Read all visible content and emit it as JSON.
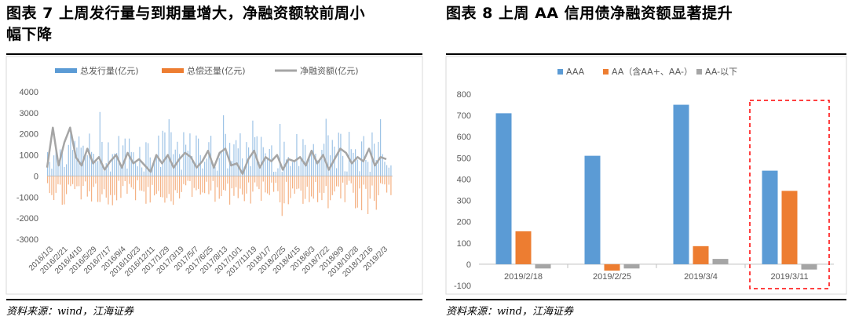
{
  "left": {
    "title": "图表 7   上周发行量与到期量增大，净融资额较前周小幅下降",
    "title_line1": "图表 7   上周发行量与到期量增大，净融资额较前周小",
    "title_line2": "幅下降",
    "source": "资料来源：wind，江海证券"
  },
  "right": {
    "title": "图表 8   上周 AA 信用债净融资额显著提升",
    "source": "资料来源：wind，江海证券"
  },
  "chart_data": [
    {
      "type": "bar",
      "title": "",
      "series": [
        {
          "name": "总发行量(亿元)",
          "type": "bar",
          "color": "#5B9BD5",
          "envelope": [
            300,
            1000,
            1500,
            2000,
            2500,
            2900,
            3000,
            3200,
            3300
          ]
        },
        {
          "name": "总偿还量(亿元)",
          "type": "bar",
          "color": "#ED7D31",
          "envelope": [
            -500,
            -1000,
            -1500,
            -1800,
            -1900
          ]
        },
        {
          "name": "净融资额(亿元)",
          "type": "line",
          "color": "#A5A5A5",
          "values": [
            400,
            2300,
            500,
            1600,
            2300,
            900,
            500,
            1300,
            600,
            900,
            300,
            700,
            1000,
            400,
            1100,
            600,
            800,
            500,
            200,
            1000,
            600,
            1000,
            400,
            800,
            1100,
            900,
            400,
            700,
            1200,
            400,
            1100,
            1300,
            500,
            600,
            100,
            800,
            1200,
            400,
            900,
            700,
            1000,
            300,
            800,
            700,
            900,
            500,
            1200,
            600,
            1000,
            300,
            800,
            1300,
            1100,
            600,
            900,
            700,
            1300,
            500,
            900,
            800
          ]
        }
      ],
      "ylim": [
        -3000,
        4000
      ],
      "yticks": [
        "4000",
        "3000",
        "2000",
        "1000",
        "0",
        "-1000",
        "-2000",
        "-3000"
      ],
      "xticks": [
        "2016/1/3",
        "2016/2/21",
        "2016/4/10",
        "2016/5/29",
        "2016/7/17",
        "2016/9/4",
        "2016/10/23",
        "2016/12/11",
        "2017/1/29",
        "2017/3/19",
        "2017/5/7",
        "2017/6/25",
        "2017/8/13",
        "2017/10/1",
        "2017/11/19",
        "2018/1/7",
        "2018/2/25",
        "2018/4/15",
        "2018/6/3",
        "2018/7/22",
        "2018/9/9",
        "2018/10/28",
        "2018/12/16",
        "2019/2/3"
      ],
      "legend": "top",
      "grid": false
    },
    {
      "type": "bar",
      "title": "",
      "categories": [
        "2019/2/18",
        "2019/2/25",
        "2019/3/4",
        "2019/3/11"
      ],
      "series": [
        {
          "name": "AAA",
          "color": "#5B9BD5",
          "values": [
            710,
            510,
            750,
            440
          ]
        },
        {
          "name": "AA（含AA+、AA-）",
          "color": "#ED7D31",
          "values": [
            155,
            -30,
            85,
            345
          ]
        },
        {
          "name": "AA-以下",
          "color": "#A5A5A5",
          "values": [
            -20,
            -20,
            25,
            -25
          ]
        }
      ],
      "ylim": [
        -100,
        800
      ],
      "yticks": [
        "800",
        "700",
        "600",
        "500",
        "400",
        "300",
        "200",
        "100",
        "0",
        "-100"
      ],
      "highlight_category": "2019/3/11",
      "highlight_color": "#FF0000",
      "legend": "top",
      "grid": false
    }
  ]
}
